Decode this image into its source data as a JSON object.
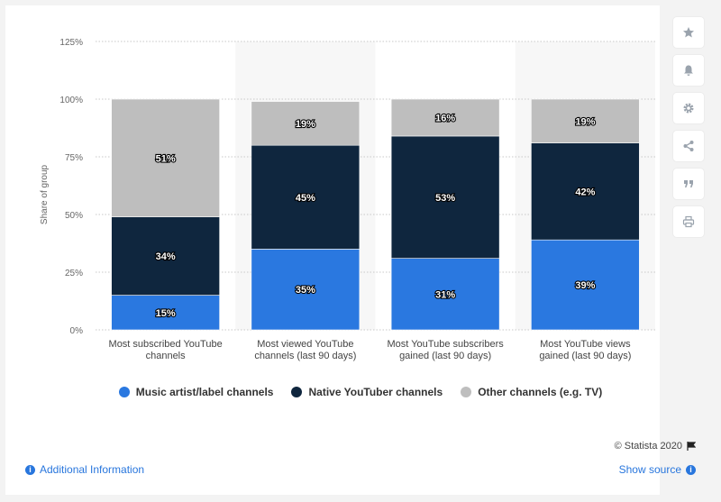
{
  "chart_data": {
    "type": "bar",
    "stacked": true,
    "categories": [
      [
        "Most subscribed YouTube",
        "channels"
      ],
      [
        "Most viewed YouTube",
        "channels (last 90 days)"
      ],
      [
        "Most YouTube subscribers",
        "gained (last 90 days)"
      ],
      [
        "Most YouTube views",
        "gained (last 90 days)"
      ]
    ],
    "series": [
      {
        "name": "Music artist/label channels",
        "values": [
          15,
          35,
          31,
          39
        ],
        "color": "#2a78e0"
      },
      {
        "name": "Native YouTuber channels",
        "values": [
          34,
          45,
          53,
          42
        ],
        "color": "#0f263e"
      },
      {
        "name": "Other channels (e.g. TV)",
        "values": [
          51,
          19,
          16,
          19
        ],
        "color": "#bebebe"
      }
    ],
    "ylabel": "Share of group",
    "ylim": [
      0,
      125
    ],
    "yticks": [
      0,
      25,
      50,
      75,
      100,
      125
    ],
    "ytick_labels": [
      "0%",
      "25%",
      "50%",
      "75%",
      "100%",
      "125%"
    ],
    "value_suffix": "%",
    "grid": true,
    "legend_position": "bottom"
  },
  "credit": "© Statista 2020",
  "footer": {
    "additional_info": "Additional Information",
    "show_source": "Show source"
  },
  "sidebar": {
    "icons": [
      "star-icon",
      "bell-icon",
      "gear-icon",
      "share-icon",
      "quote-icon",
      "print-icon"
    ]
  }
}
